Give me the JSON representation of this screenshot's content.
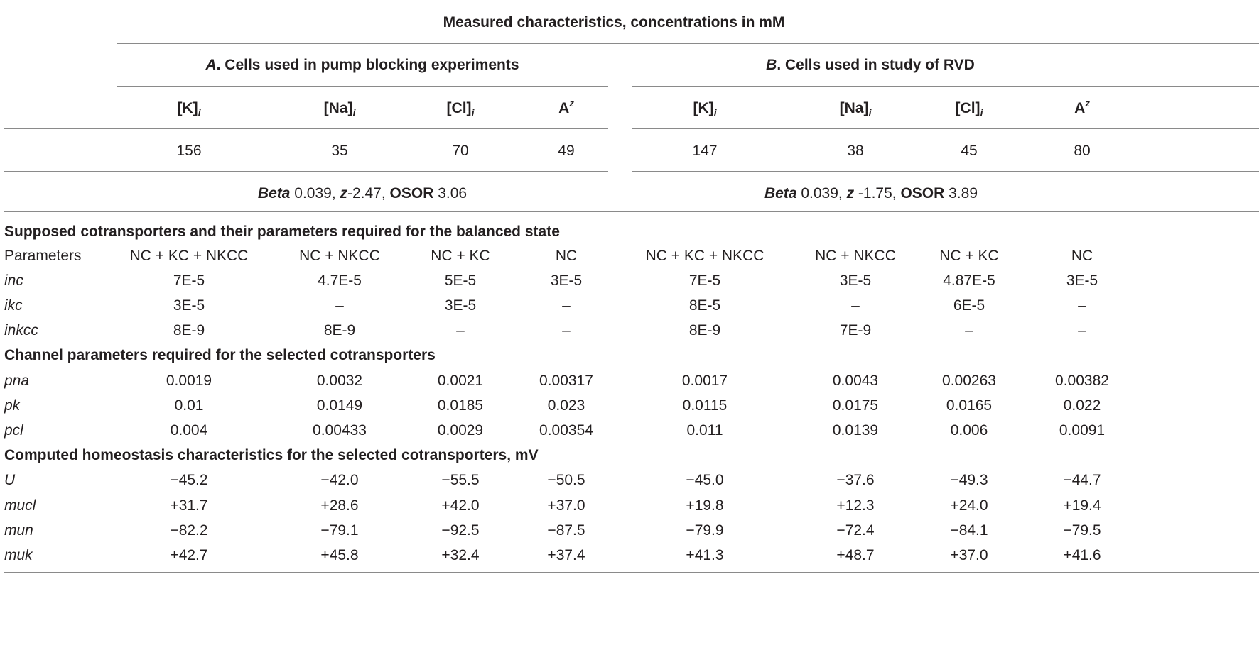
{
  "header": {
    "title": "Measured characteristics, concentrations in mM",
    "group_a": {
      "letter": "A",
      "rest": ". Cells used in pump blocking experiments"
    },
    "group_b": {
      "letter": "B",
      "rest": ". Cells used in study of RVD"
    },
    "measures": [
      {
        "base": "[K]",
        "sub": "i"
      },
      {
        "base": "[Na]",
        "sub": "i"
      },
      {
        "base": "[Cl]",
        "sub": "i"
      },
      {
        "base": "A",
        "sup": "z"
      }
    ],
    "values_a": [
      "156",
      "35",
      "70",
      "49"
    ],
    "values_b": [
      "147",
      "38",
      "45",
      "80"
    ],
    "params_a": {
      "beta_label": "Beta",
      "beta": " 0.039, ",
      "z_label": "z",
      "z": "-2.47, ",
      "osor_label": "OSOR",
      "osor": " 3.06"
    },
    "params_b": {
      "beta_label": "Beta",
      "beta": " 0.039, ",
      "z_label": "z",
      "z": " -1.75, ",
      "osor_label": "OSOR",
      "osor": " 3.89"
    }
  },
  "sections": [
    {
      "title": "Supposed cotransporters and their parameters required for the balanced state",
      "rows": [
        {
          "label": "Parameters",
          "italic": false,
          "cells": [
            "NC + KC + NKCC",
            "NC + NKCC",
            "NC + KC",
            "NC",
            "NC + KC + NKCC",
            "NC + NKCC",
            "NC + KC",
            "NC"
          ]
        },
        {
          "label": "inc",
          "italic": true,
          "cells": [
            "7E-5",
            "4.7E-5",
            "5E-5",
            "3E-5",
            "7E-5",
            "3E-5",
            "4.87E-5",
            "3E-5"
          ]
        },
        {
          "label": "ikc",
          "italic": true,
          "cells": [
            "3E-5",
            "–",
            "3E-5",
            "–",
            "8E-5",
            "–",
            "6E-5",
            "–"
          ]
        },
        {
          "label": "inkcc",
          "italic": true,
          "cells": [
            "8E-9",
            "8E-9",
            "–",
            "–",
            "8E-9",
            "7E-9",
            "–",
            "–"
          ]
        }
      ]
    },
    {
      "title": "Channel parameters required for the selected cotransporters",
      "rows": [
        {
          "label": "pna",
          "italic": true,
          "cells": [
            "0.0019",
            "0.0032",
            "0.0021",
            "0.00317",
            "0.0017",
            "0.0043",
            "0.00263",
            "0.00382"
          ]
        },
        {
          "label": "pk",
          "italic": true,
          "cells": [
            "0.01",
            "0.0149",
            "0.0185",
            "0.023",
            "0.0115",
            "0.0175",
            "0.0165",
            "0.022"
          ]
        },
        {
          "label": "pcl",
          "italic": true,
          "cells": [
            "0.004",
            "0.00433",
            "0.0029",
            "0.00354",
            "0.011",
            "0.0139",
            "0.006",
            "0.0091"
          ]
        }
      ]
    },
    {
      "title": "Computed homeostasis characteristics for the selected cotransporters, mV",
      "rows": [
        {
          "label": "U",
          "italic": true,
          "cells": [
            "−45.2",
            "−42.0",
            "−55.5",
            "−50.5",
            "−45.0",
            "−37.6",
            "−49.3",
            "−44.7"
          ]
        },
        {
          "label": "mucl",
          "italic": true,
          "cells": [
            "+31.7",
            "+28.6",
            "+42.0",
            "+37.0",
            "+19.8",
            "+12.3",
            "+24.0",
            "+19.4"
          ]
        },
        {
          "label": "mun",
          "italic": true,
          "cells": [
            "−82.2",
            "−79.1",
            "−92.5",
            "−87.5",
            "−79.9",
            "−72.4",
            "−84.1",
            "−79.5"
          ]
        },
        {
          "label": "muk",
          "italic": true,
          "cells": [
            "+42.7",
            "+45.8",
            "+32.4",
            "+37.4",
            "+41.3",
            "+48.7",
            "+37.0",
            "+41.6"
          ]
        }
      ]
    }
  ]
}
